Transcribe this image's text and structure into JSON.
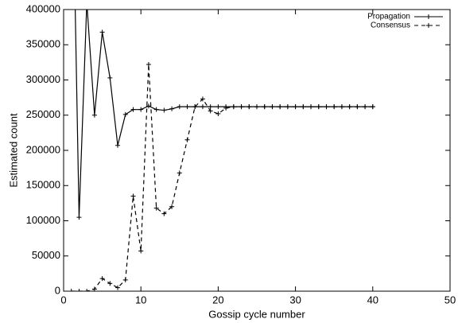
{
  "chart_data": {
    "type": "line",
    "xlabel": "Gossip cycle number",
    "ylabel": "Estimated count",
    "x": [
      1,
      2,
      3,
      4,
      5,
      6,
      7,
      8,
      9,
      10,
      11,
      12,
      13,
      14,
      15,
      16,
      17,
      18,
      19,
      20,
      21,
      22,
      23,
      24,
      25,
      26,
      27,
      28,
      29,
      30,
      31,
      32,
      33,
      34,
      35,
      36,
      37,
      38,
      39,
      40
    ],
    "series": [
      {
        "name": "Propagation",
        "color": "#000000",
        "dash": "solid",
        "values": [
          700000,
          105000,
          410000,
          250000,
          368000,
          303000,
          207000,
          251000,
          258000,
          258000,
          263000,
          258000,
          257000,
          259000,
          262000,
          262000,
          262000,
          262000,
          262000,
          262000,
          262000,
          262000,
          262000,
          262000,
          262000,
          262000,
          262000,
          262000,
          262000,
          262000,
          262000,
          262000,
          262000,
          262000,
          262000,
          262000,
          262000,
          262000,
          262000,
          262000
        ]
      },
      {
        "name": "Consensus",
        "color": "#000000",
        "dash": "dashed",
        "values": [
          0,
          0,
          0,
          3000,
          18000,
          11000,
          5000,
          16000,
          135000,
          57000,
          322000,
          118000,
          110000,
          120000,
          168000,
          215000,
          262000,
          273000,
          256000,
          252000,
          260000,
          262000,
          262000,
          262000,
          262000,
          262000,
          262000,
          262000,
          262000,
          262000,
          262000,
          262000,
          262000,
          262000,
          262000,
          262000,
          262000,
          262000,
          262000,
          262000
        ]
      }
    ],
    "xlim": [
      0,
      50
    ],
    "xticks": [
      0,
      10,
      20,
      30,
      40,
      50
    ],
    "ylim": [
      0,
      400000
    ],
    "yticks": [
      0,
      50000,
      100000,
      150000,
      200000,
      250000,
      300000,
      350000,
      400000
    ],
    "legend": "top-right"
  }
}
